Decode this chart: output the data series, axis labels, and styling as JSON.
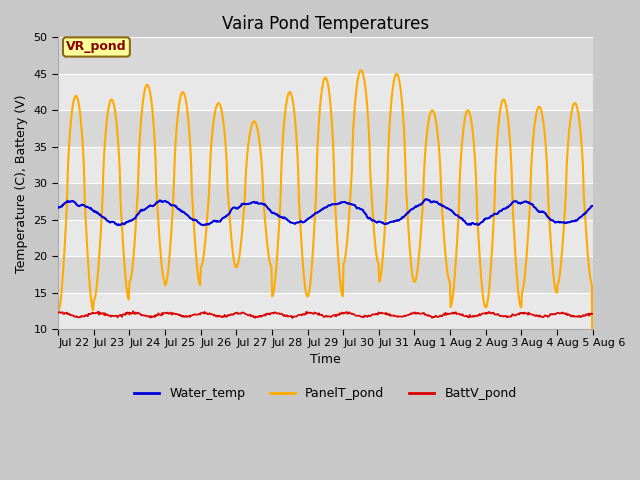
{
  "title": "Vaira Pond Temperatures",
  "xlabel": "Time",
  "ylabel": "Temperature (C), Battery (V)",
  "ylim": [
    10,
    50
  ],
  "x_tick_labels": [
    "Jul 22",
    "Jul 23",
    "Jul 24",
    "Jul 25",
    "Jul 26",
    "Jul 27",
    "Jul 28",
    "Jul 29",
    "Jul 30",
    "Jul 31",
    "Aug 1",
    "Aug 2",
    "Aug 3",
    "Aug 4",
    "Aug 5",
    "Aug 6"
  ],
  "fig_bg_color": "#c8c8c8",
  "plot_bg_color": "#e8e8e8",
  "band_colors": [
    "#e8e8e8",
    "#d8d8d8"
  ],
  "water_color": "#0000dd",
  "panel_color": "#ffaa00",
  "batt_color": "#dd0000",
  "annotation_text": "VR_pond",
  "annotation_color": "#8b0000",
  "annotation_bg": "#ffff99",
  "annotation_border": "#8b6914",
  "water_lw": 1.5,
  "panel_lw": 1.5,
  "batt_lw": 1.2,
  "yticks": [
    10,
    15,
    20,
    25,
    30,
    35,
    40,
    45,
    50
  ],
  "grid_color": "#ffffff",
  "title_fontsize": 12,
  "label_fontsize": 9,
  "tick_fontsize": 8,
  "legend_fontsize": 9
}
